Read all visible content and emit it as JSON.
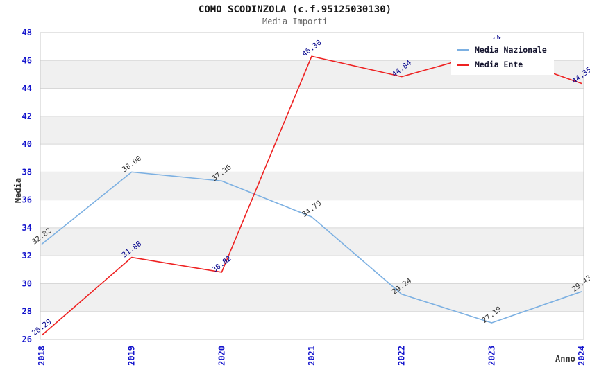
{
  "header": {
    "title": "COMO SCODINZOLA (c.f.95125030130)",
    "subtitle": "Media Importi"
  },
  "axes": {
    "y_label": "Media",
    "x_label": "Anno",
    "y_ticks": [
      26,
      28,
      30,
      32,
      34,
      36,
      38,
      40,
      42,
      44,
      46,
      48
    ],
    "x_ticks": [
      "2018",
      "2019",
      "2020",
      "2021",
      "2022",
      "2023",
      "2024"
    ],
    "tick_color": "#1414cc"
  },
  "legend": {
    "items": [
      {
        "label": "Media Nazionale",
        "color": "#7cb0e2"
      },
      {
        "label": "Media Ente",
        "color": "#ee2222"
      }
    ]
  },
  "colors": {
    "band_gray": "#f0f0f0",
    "band_white": "#ffffff",
    "gridline": "#d8d8d8",
    "plot_border": "#c8c8c8"
  },
  "chart_data": {
    "type": "line",
    "title": "COMO SCODINZOLA (c.f.95125030130)",
    "subtitle": "Media Importi",
    "x": [
      "2018",
      "2019",
      "2020",
      "2021",
      "2022",
      "2023",
      "2024"
    ],
    "series": [
      {
        "name": "Media Nazionale",
        "color": "#7cb0e2",
        "label_color": "#333333",
        "values": [
          32.82,
          38.0,
          37.36,
          34.79,
          29.24,
          27.19,
          29.43
        ],
        "point_labels": [
          "32.82",
          "38.00",
          "37.36",
          "34.79",
          "29.24",
          "27.19",
          "29.43"
        ]
      },
      {
        "name": "Media Ente",
        "color": "#ee2222",
        "label_color": "#00008b",
        "values": [
          26.29,
          31.88,
          30.82,
          46.3,
          44.84,
          46.64,
          44.35
        ],
        "point_labels": [
          "26.29",
          "31.88",
          "30.82",
          "46.30",
          "44.84",
          "46.64",
          "44.35"
        ]
      }
    ],
    "xlabel": "Anno",
    "ylabel": "Media",
    "ylim": [
      26,
      48
    ],
    "grid": "horizontal, alternating gray bands every 2 units",
    "legend_position": "top-right"
  }
}
